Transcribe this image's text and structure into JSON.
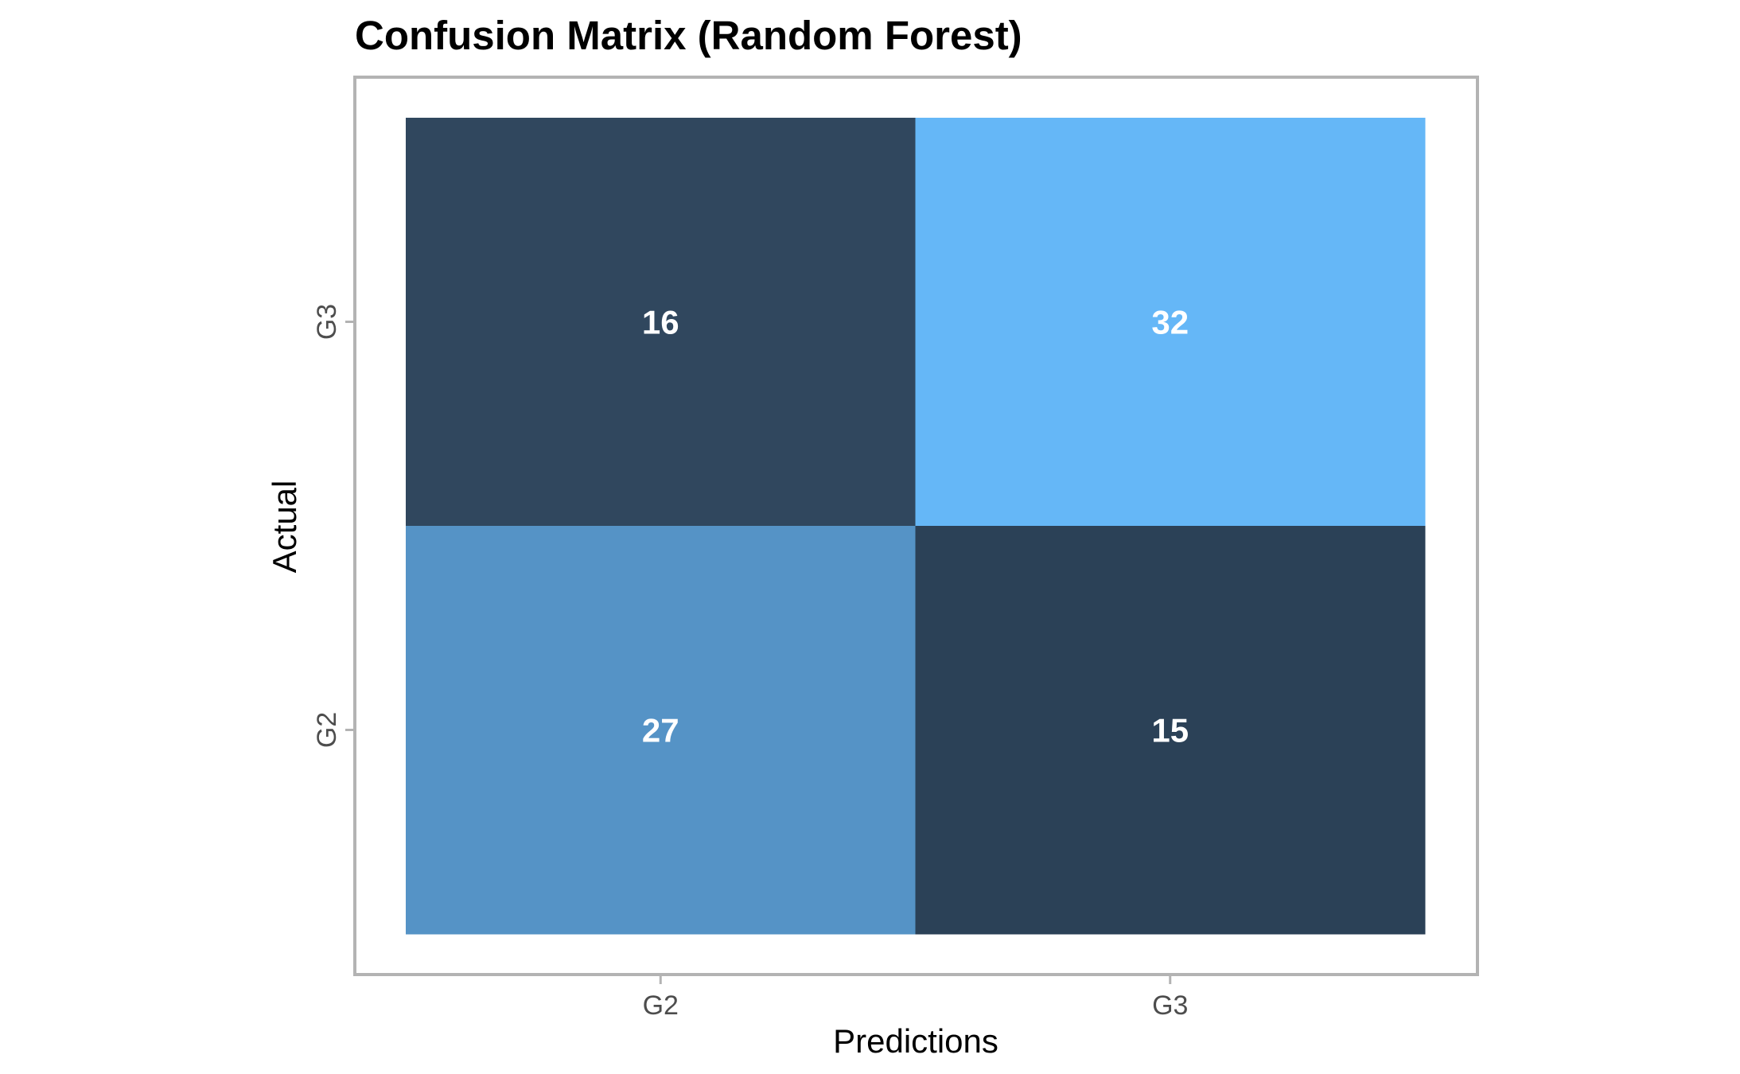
{
  "chart_data": {
    "type": "heatmap",
    "title": "Confusion Matrix (Random Forest)",
    "xlabel": "Predictions",
    "ylabel": "Actual",
    "x_categories": [
      "G2",
      "G3"
    ],
    "y_categories": [
      "G2",
      "G3"
    ],
    "cells": [
      {
        "predicted": "G2",
        "actual": "G3",
        "value": 16,
        "color": "#30475e"
      },
      {
        "predicted": "G3",
        "actual": "G3",
        "value": 32,
        "color": "#65b7f7"
      },
      {
        "predicted": "G2",
        "actual": "G2",
        "value": 27,
        "color": "#5593c6"
      },
      {
        "predicted": "G3",
        "actual": "G2",
        "value": 15,
        "color": "#2b4157"
      }
    ],
    "panel_border_color": "#b3b3b3",
    "grid": false,
    "legend": "none"
  }
}
